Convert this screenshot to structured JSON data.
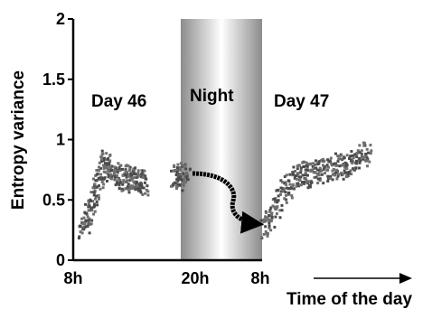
{
  "chart_data": {
    "type": "scatter",
    "title": "",
    "xlabel": "Time of the day",
    "ylabel": "Entropy variance",
    "ylim": [
      0,
      2
    ],
    "yticks": [
      "0",
      "0.5",
      "1",
      "1.5",
      "2"
    ],
    "xticks": [
      "8h",
      "20h",
      "8h"
    ],
    "annotations": {
      "day1": "Day 46",
      "night": "Night",
      "day2": "Day 47"
    },
    "grid": false,
    "legend": "none",
    "point_color": "#4a4a4a",
    "night_band_color": "#a8a8a8",
    "series": [
      {
        "day": "Day 46",
        "x_hours": [
          8.8,
          9.1,
          9.4,
          9.7,
          10.0,
          10.2,
          10.5,
          10.8,
          11.0,
          11.3,
          11.6,
          11.9,
          12.2,
          12.5,
          12.8,
          13.1,
          13.4,
          13.7,
          14.0,
          14.3,
          14.6,
          14.9,
          17.8,
          18.1,
          18.4,
          18.7,
          19.0
        ],
        "y": [
          0.28,
          0.32,
          0.38,
          0.42,
          0.55,
          0.62,
          0.7,
          0.78,
          0.82,
          0.8,
          0.76,
          0.72,
          0.7,
          0.68,
          0.72,
          0.7,
          0.66,
          0.65,
          0.7,
          0.68,
          0.66,
          0.64,
          0.7,
          0.72,
          0.68,
          0.74,
          0.7
        ]
      },
      {
        "day": "Day 47",
        "x_hours": [
          32.2,
          32.6,
          33.0,
          33.4,
          33.8,
          34.2,
          34.6,
          35.0,
          35.4,
          35.8,
          36.2,
          36.6,
          37.0,
          37.4,
          37.8,
          38.2,
          38.6,
          39.0,
          39.4,
          39.8,
          40.2,
          40.6,
          41.0,
          41.4,
          41.8,
          42.2
        ],
        "y": [
          0.28,
          0.32,
          0.38,
          0.45,
          0.52,
          0.58,
          0.62,
          0.66,
          0.7,
          0.72,
          0.74,
          0.7,
          0.72,
          0.74,
          0.76,
          0.74,
          0.76,
          0.78,
          0.8,
          0.78,
          0.8,
          0.82,
          0.84,
          0.86,
          0.88,
          0.92
        ]
      }
    ]
  }
}
